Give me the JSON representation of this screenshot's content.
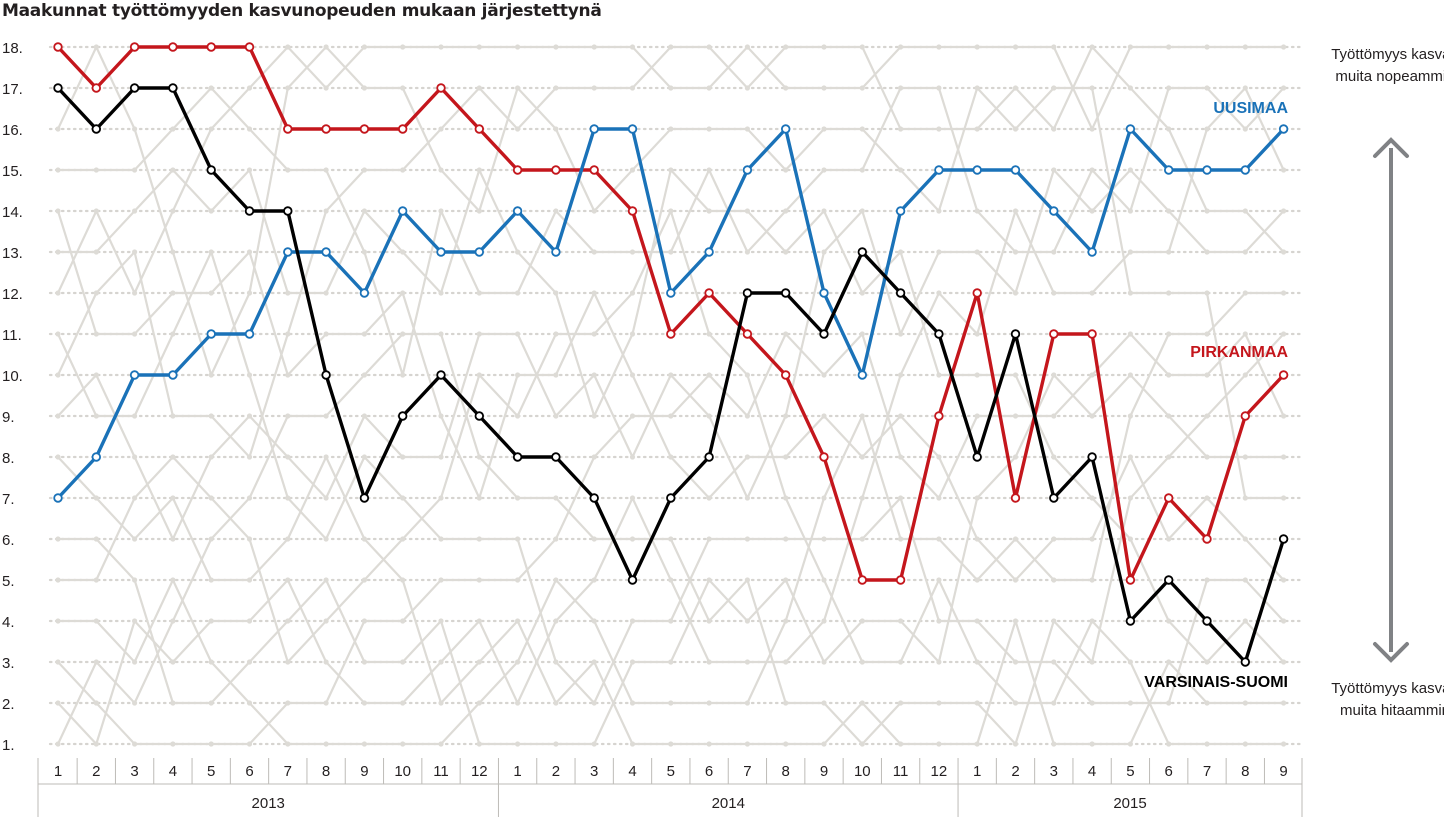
{
  "chart_data": {
    "type": "line",
    "title": "Maakunnat työttömyyden kasvunopeuden mukaan järjestettynä",
    "y_ticks": [
      "1.",
      "2.",
      "3.",
      "4.",
      "5.",
      "6.",
      "7.",
      "8.",
      "9.",
      "10.",
      "11.",
      "12.",
      "13.",
      "14.",
      "15.",
      "16.",
      "17.",
      "18."
    ],
    "ylim": [
      1,
      18
    ],
    "x": [
      "1",
      "2",
      "3",
      "4",
      "5",
      "6",
      "7",
      "8",
      "9",
      "10",
      "11",
      "12",
      "1",
      "2",
      "3",
      "4",
      "5",
      "6",
      "7",
      "8",
      "9",
      "10",
      "11",
      "12",
      "1",
      "2",
      "3",
      "4",
      "5",
      "6",
      "7",
      "8",
      "9"
    ],
    "years": [
      {
        "label": "2013",
        "months": 12
      },
      {
        "label": "2014",
        "months": 12
      },
      {
        "label": "2015",
        "months": 9
      }
    ],
    "grid": true,
    "annotations": {
      "top": "Työttömyys kasvaa muita nopeammin",
      "bottom": "Työttömyys kasvaa muita hitaammin"
    },
    "series": [
      {
        "name": "UUSIMAA",
        "color": "#1a72b8",
        "values": [
          7,
          8,
          10,
          10,
          11,
          11,
          13,
          13,
          12,
          14,
          13,
          13,
          14,
          13,
          16,
          16,
          12,
          13,
          15,
          16,
          12,
          10,
          14,
          15,
          15,
          15,
          14,
          13,
          16,
          15,
          15,
          15,
          16
        ]
      },
      {
        "name": "PIRKANMAA",
        "color": "#c4161c",
        "values": [
          18,
          17,
          18,
          18,
          18,
          18,
          16,
          16,
          16,
          16,
          17,
          16,
          15,
          15,
          15,
          14,
          11,
          12,
          11,
          10,
          8,
          5,
          5,
          9,
          12,
          7,
          11,
          11,
          5,
          7,
          6,
          9,
          10
        ]
      },
      {
        "name": "VARSINAIS-SUOMI",
        "color": "#000000",
        "values": [
          17,
          16,
          17,
          17,
          15,
          14,
          14,
          10,
          7,
          9,
          10,
          9,
          8,
          8,
          7,
          5,
          7,
          8,
          12,
          12,
          11,
          13,
          12,
          11,
          8,
          11,
          7,
          8,
          4,
          5,
          4,
          3,
          6
        ]
      }
    ],
    "colors": {
      "grid": "#d6d4d0",
      "background_lines": "#dddbd6",
      "axis": "#bdbbb7",
      "arrow": "#808285"
    }
  }
}
